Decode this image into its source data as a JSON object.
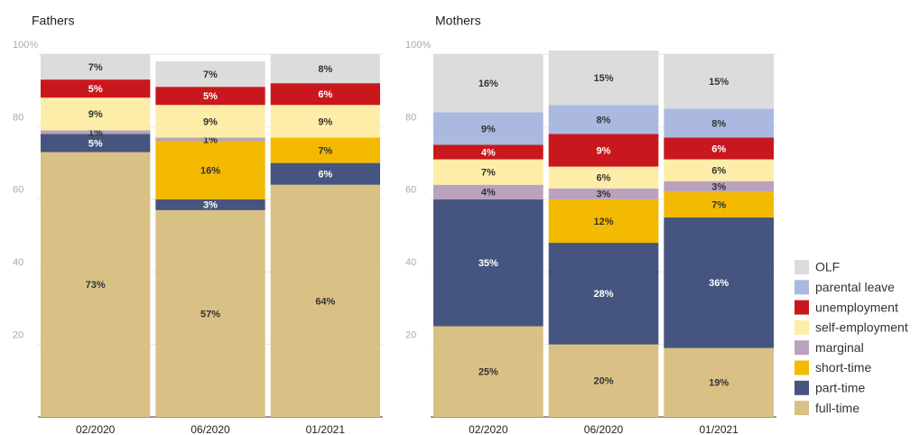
{
  "chart_data": [
    {
      "type": "stacked_bar",
      "title": "Fathers",
      "categories": [
        "02/2020",
        "06/2020",
        "01/2021"
      ],
      "ylim": [
        0,
        100
      ],
      "yticks": [
        20,
        40,
        60,
        80,
        {
          "value": 100,
          "label": "100%"
        }
      ],
      "grid": true,
      "series": [
        {
          "name": "full-time",
          "color": "#d9c084",
          "values": [
            73,
            57,
            64
          ],
          "value_labels": [
            "73%",
            "57%",
            "64%"
          ]
        },
        {
          "name": "part-time",
          "color": "#46557f",
          "values": [
            5,
            3,
            6
          ],
          "value_labels": [
            "5%",
            "3%",
            "6%"
          ]
        },
        {
          "name": "short-time",
          "color": "#f4b901",
          "values": [
            null,
            16,
            7
          ],
          "value_labels": [
            null,
            "16%",
            "7%"
          ]
        },
        {
          "name": "marginal",
          "color": "#b9a2bd",
          "values": [
            1,
            1,
            null
          ],
          "value_labels": [
            "1%",
            "1%",
            null
          ]
        },
        {
          "name": "self-employment",
          "color": "#feeda8",
          "values": [
            9,
            9,
            9
          ],
          "value_labels": [
            "9%",
            "9%",
            "9%"
          ]
        },
        {
          "name": "unemployment",
          "color": "#c9181d",
          "values": [
            5,
            5,
            6
          ],
          "value_labels": [
            "5%",
            "5%",
            "6%"
          ]
        },
        {
          "name": "OLF",
          "color": "#dcdcdc",
          "values": [
            7,
            7,
            8
          ],
          "value_labels": [
            "7%",
            "7%",
            "8%"
          ]
        }
      ]
    },
    {
      "type": "stacked_bar",
      "title": "Mothers",
      "categories": [
        "02/2020",
        "06/2020",
        "01/2021"
      ],
      "ylim": [
        0,
        100
      ],
      "yticks": [
        20,
        40,
        60,
        80,
        {
          "value": 100,
          "label": "100%"
        }
      ],
      "grid": true,
      "legend": "right",
      "series": [
        {
          "name": "full-time",
          "color": "#d9c084",
          "values": [
            25,
            20,
            19
          ],
          "value_labels": [
            "25%",
            "20%",
            "19%"
          ]
        },
        {
          "name": "part-time",
          "color": "#46557f",
          "values": [
            35,
            28,
            36
          ],
          "value_labels": [
            "35%",
            "28%",
            "36%"
          ]
        },
        {
          "name": "short-time",
          "color": "#f4b901",
          "values": [
            null,
            12,
            7
          ],
          "value_labels": [
            null,
            "12%",
            "7%"
          ]
        },
        {
          "name": "marginal",
          "color": "#b9a2bd",
          "values": [
            4,
            3,
            3
          ],
          "value_labels": [
            "4%",
            "3%",
            "3%"
          ]
        },
        {
          "name": "self-employment",
          "color": "#feeda8",
          "values": [
            7,
            6,
            6
          ],
          "value_labels": [
            "7%",
            "6%",
            "6%"
          ]
        },
        {
          "name": "unemployment",
          "color": "#c9181d",
          "values": [
            4,
            9,
            6
          ],
          "value_labels": [
            "4%",
            "9%",
            "6%"
          ]
        },
        {
          "name": "parental leave",
          "color": "#abb9e1",
          "values": [
            9,
            8,
            8
          ],
          "value_labels": [
            "9%",
            "8%",
            "8%"
          ]
        },
        {
          "name": "OLF",
          "color": "#dcdcdc",
          "values": [
            16,
            15,
            15
          ],
          "value_labels": [
            "16%",
            "15%",
            "15%"
          ]
        }
      ]
    }
  ]
}
